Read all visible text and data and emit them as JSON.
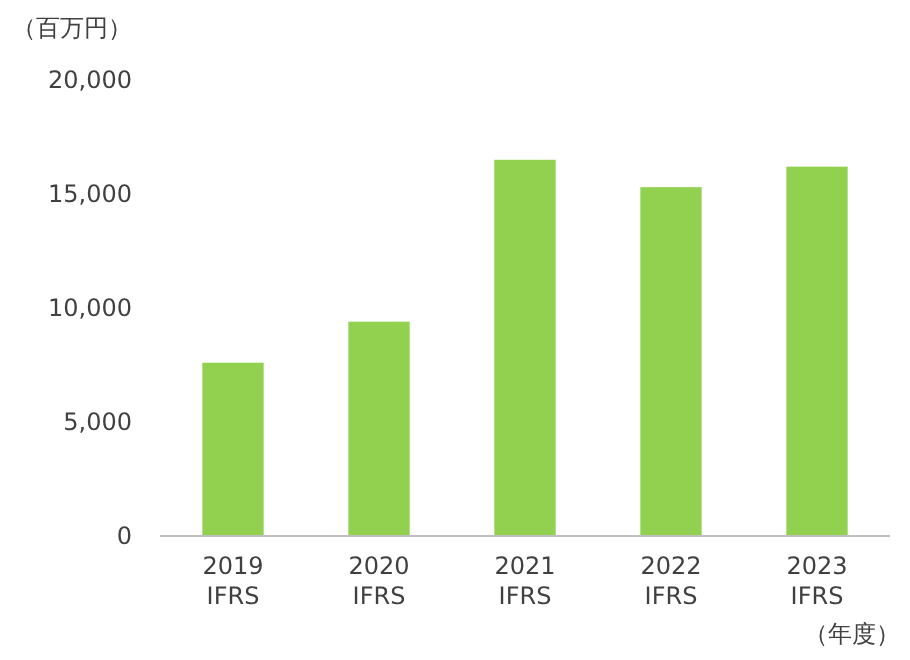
{
  "chart_data": {
    "type": "bar",
    "ylabel": "（百万円）",
    "xlabel": "（年度）",
    "categories": [
      "2019\nIFRS",
      "2020\nIFRS",
      "2021\nIFRS",
      "2022\nIFRS",
      "2023\nIFRS"
    ],
    "values": [
      7600,
      9400,
      16500,
      15300,
      16200
    ],
    "color": "#92d050",
    "ylim": [
      0,
      20000
    ],
    "yticks": [
      {
        "value": 0,
        "label": "0"
      },
      {
        "value": 5000,
        "label": "5,000"
      },
      {
        "value": 10000,
        "label": "10,000"
      },
      {
        "value": 15000,
        "label": "15,000"
      },
      {
        "value": 20000,
        "label": "20,000"
      }
    ],
    "grid": false
  }
}
